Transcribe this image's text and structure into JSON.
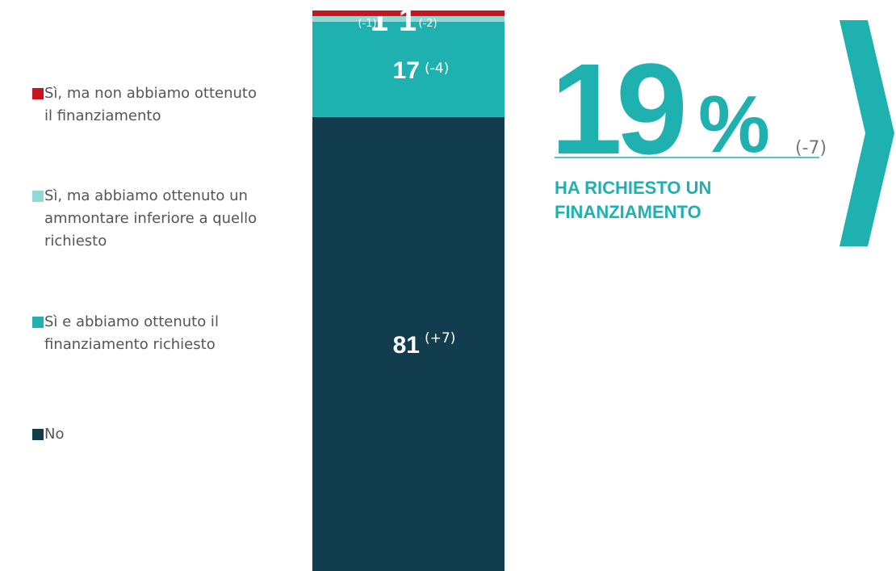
{
  "chart_data": {
    "type": "stacked_bar",
    "ylim": [
      0,
      100
    ],
    "series": [
      {
        "name": "No",
        "color": "#123d4f",
        "values": [
          81
        ],
        "change": {
          "value": 7,
          "label": "(+7)"
        }
      },
      {
        "name": "Sì e abbiamo ottenuto il finanziamento richiesto",
        "color": "#1fb1b0",
        "values": [
          17
        ],
        "change": {
          "value": -4,
          "label": "(-4)"
        }
      },
      {
        "name": "Sì, ma abbiamo ottenuto un ammontare inferiore a quello richiesto",
        "color": "#92d8d4",
        "values": [
          1
        ],
        "change": {
          "value": -1,
          "label": "(-1)"
        }
      },
      {
        "name": "Sì, ma non abbiamo ottenuto il finanziamento",
        "color": "#c8141c",
        "values": [
          1
        ],
        "change": {
          "value": -2,
          "label": "(-2)"
        }
      }
    ],
    "highlight": {
      "value": 19,
      "unit": "%",
      "change": {
        "value": -7,
        "label": "(-7)"
      },
      "label": "HA RICHIESTO UN FINANZIAMENTO",
      "color": "#1fb1b0"
    }
  }
}
